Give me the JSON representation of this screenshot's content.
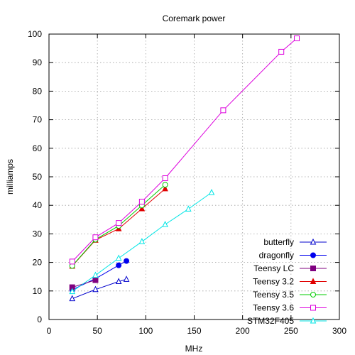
{
  "chart_data": {
    "type": "line",
    "title": "Coremark power",
    "xlabel": "MHz",
    "ylabel": "milliamps",
    "xlim": [
      0,
      300
    ],
    "ylim": [
      0,
      100
    ],
    "xticks": [
      0,
      50,
      100,
      150,
      200,
      250,
      300
    ],
    "yticks": [
      0,
      10,
      20,
      30,
      40,
      50,
      60,
      70,
      80,
      90,
      100
    ],
    "grid": true,
    "legend_position": "bottom-right",
    "series": [
      {
        "name": "butterfly",
        "color": "#0000cc",
        "marker": "triangle-open",
        "points": [
          [
            24,
            7.3
          ],
          [
            48,
            10.5
          ],
          [
            72,
            13.3
          ],
          [
            80,
            14.1
          ]
        ]
      },
      {
        "name": "dragonfly",
        "color": "#0000ee",
        "marker": "circle-filled",
        "points": [
          [
            24,
            10.4
          ],
          [
            48,
            14.3
          ],
          [
            72,
            19.0
          ],
          [
            80,
            20.5
          ]
        ]
      },
      {
        "name": "Teensy LC",
        "color": "#7f007f",
        "marker": "square-filled",
        "points": [
          [
            24,
            11.3
          ],
          [
            48,
            13.8
          ]
        ]
      },
      {
        "name": "Teensy 3.2",
        "color": "#e00000",
        "marker": "triangle-filled",
        "points": [
          [
            24,
            18.7
          ],
          [
            48,
            27.8
          ],
          [
            72,
            31.8
          ],
          [
            96,
            38.8
          ],
          [
            120,
            45.8
          ]
        ]
      },
      {
        "name": "Teensy 3.5",
        "color": "#00cc00",
        "marker": "circle-open",
        "points": [
          [
            24,
            18.8
          ],
          [
            48,
            28.0
          ],
          [
            72,
            32.8
          ],
          [
            96,
            40.0
          ],
          [
            120,
            47.2
          ]
        ]
      },
      {
        "name": "Teensy 3.6",
        "color": "#dd00dd",
        "marker": "square-open",
        "points": [
          [
            24,
            20.3
          ],
          [
            48,
            28.8
          ],
          [
            72,
            33.8
          ],
          [
            96,
            41.3
          ],
          [
            120,
            49.5
          ],
          [
            180,
            73.3
          ],
          [
            240,
            93.8
          ],
          [
            256,
            98.5
          ]
        ]
      },
      {
        "name": "STM32F405",
        "color": "#00e5e5",
        "marker": "triangle-open",
        "points": [
          [
            24,
            9.8
          ],
          [
            48,
            15.5
          ],
          [
            72,
            21.5
          ],
          [
            96,
            27.3
          ],
          [
            120,
            33.3
          ],
          [
            144,
            38.7
          ],
          [
            168,
            44.5
          ]
        ]
      }
    ]
  }
}
